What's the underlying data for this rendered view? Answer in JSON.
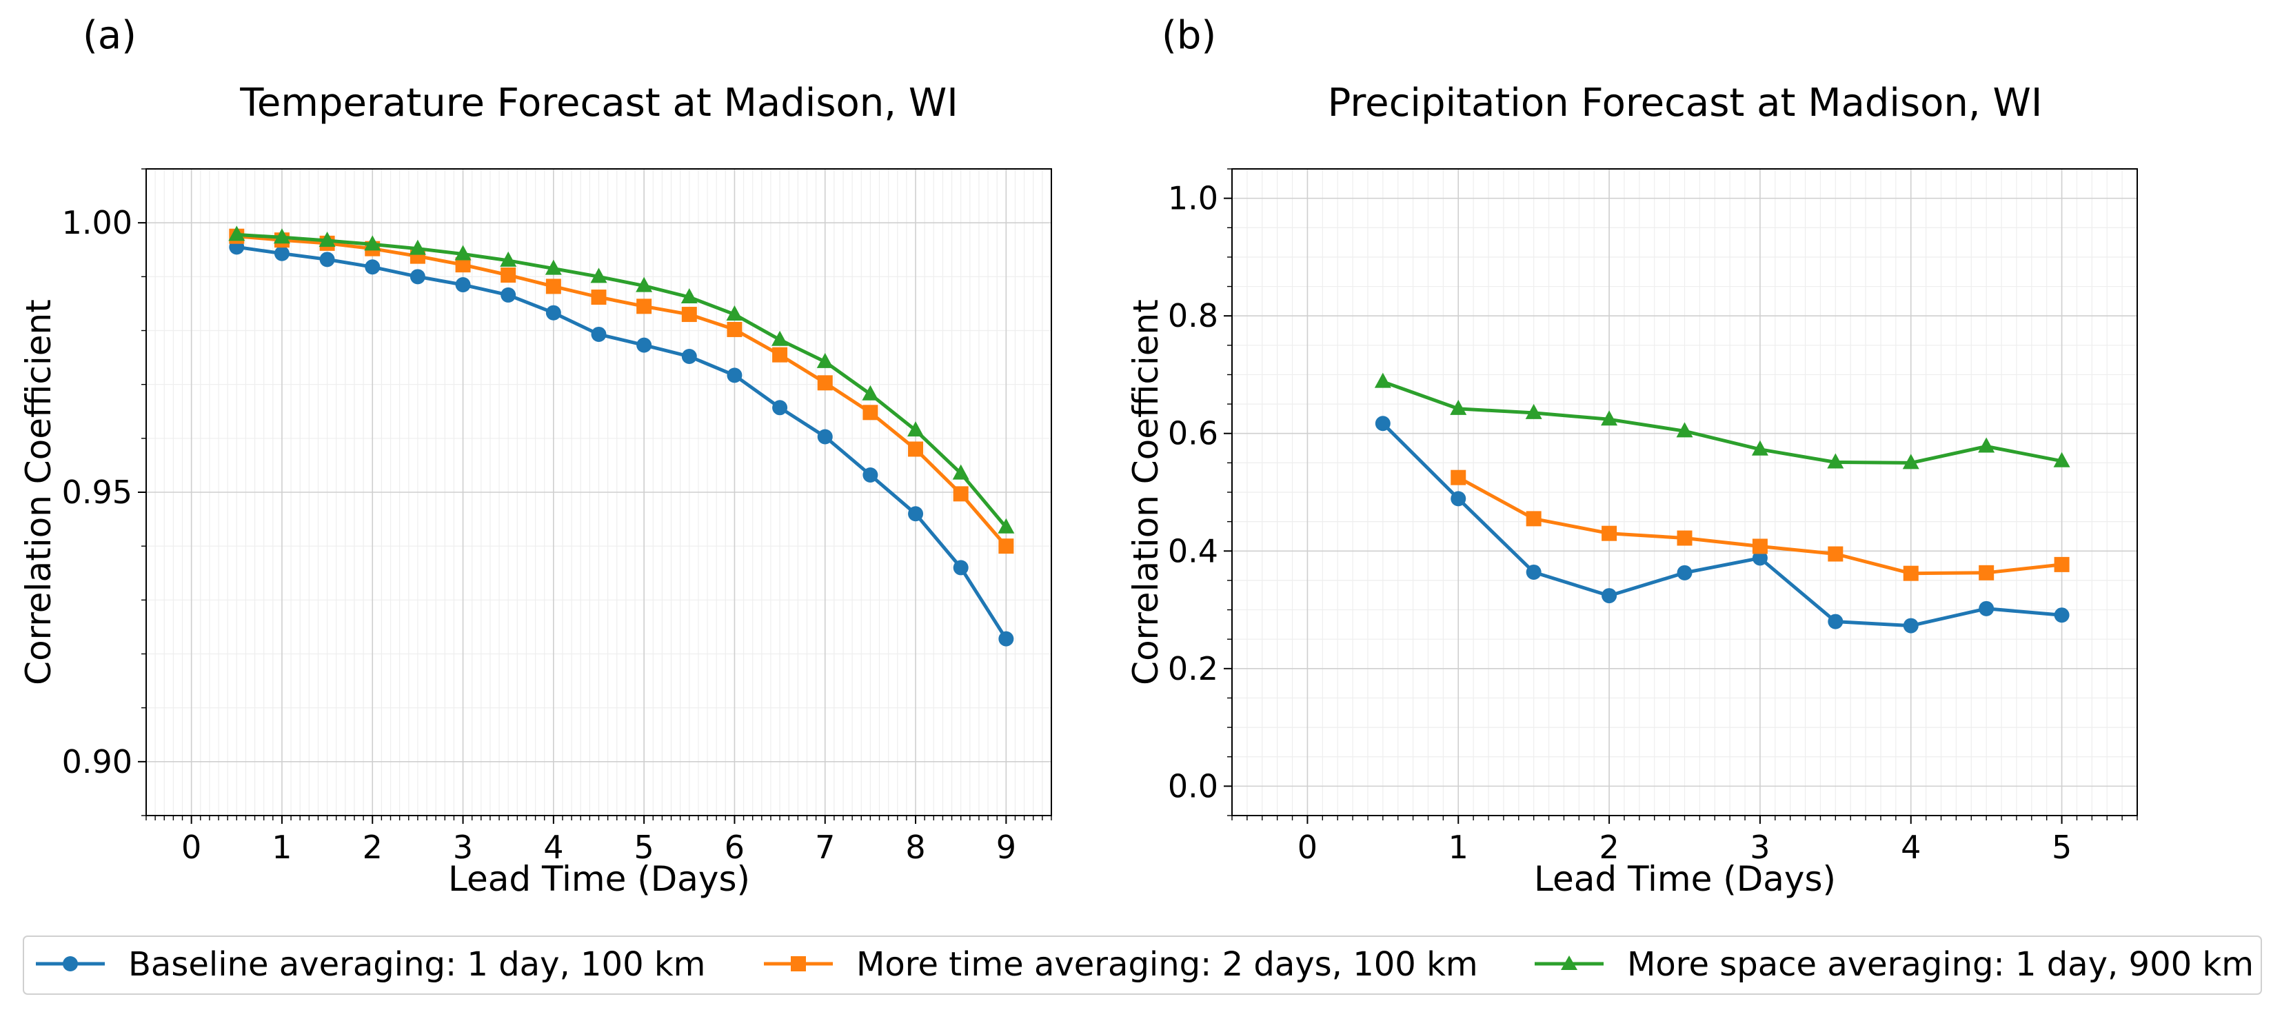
{
  "chart_data": [
    {
      "type": "line",
      "panel_label": "(a)",
      "title": "Temperature Forecast at Madison, WI",
      "xlabel": "Lead Time (Days)",
      "ylabel": "Correlation Coefficient",
      "xlim": [
        -0.5,
        9.5
      ],
      "ylim": [
        0.89,
        1.01
      ],
      "xticks": [
        0,
        1,
        2,
        3,
        4,
        5,
        6,
        7,
        8,
        9
      ],
      "xtick_labels": [
        "0",
        "1",
        "2",
        "3",
        "4",
        "5",
        "6",
        "7",
        "8",
        "9"
      ],
      "yticks": [
        0.9,
        0.95,
        1.0
      ],
      "ytick_labels": [
        "0.90",
        "0.95",
        "1.00"
      ],
      "grid": true,
      "x": [
        0.5,
        1,
        1.5,
        2,
        2.5,
        3,
        3.5,
        4,
        4.5,
        5,
        5.5,
        6,
        6.5,
        7,
        7.5,
        8,
        8.5,
        9
      ],
      "series": [
        {
          "name": "Baseline averaging: 1 day, 100 km",
          "marker": "circle",
          "color": "#1f77b4",
          "values": [
            0.9955,
            0.9943,
            0.9932,
            0.9918,
            0.99,
            0.9885,
            0.9866,
            0.9833,
            0.9793,
            0.9773,
            0.9752,
            0.9717,
            0.9657,
            0.9603,
            0.9532,
            0.946,
            0.936,
            0.9228
          ]
        },
        {
          "name": "More time averaging: 2 days, 100 km",
          "marker": "square",
          "color": "#ff7f0e",
          "values": [
            0.9975,
            0.9968,
            0.9962,
            0.9952,
            0.9938,
            0.9922,
            0.9903,
            0.9882,
            0.9862,
            0.9845,
            0.983,
            0.9802,
            0.9755,
            0.9703,
            0.9648,
            0.958,
            0.9497,
            0.94
          ]
        },
        {
          "name": "More space averaging: 1 day, 900 km",
          "marker": "triangle",
          "color": "#2ca02c",
          "values": [
            0.9978,
            0.9973,
            0.9967,
            0.996,
            0.9952,
            0.9942,
            0.993,
            0.9915,
            0.99,
            0.9883,
            0.9862,
            0.983,
            0.9783,
            0.9742,
            0.9682,
            0.9615,
            0.9535,
            0.9435
          ]
        }
      ]
    },
    {
      "type": "line",
      "panel_label": "(b)",
      "title": "Precipitation Forecast at Madison, WI",
      "xlabel": "Lead Time (Days)",
      "ylabel": "Correlation Coefficient",
      "xlim": [
        -0.5,
        5.5
      ],
      "ylim": [
        -0.05,
        1.05
      ],
      "xticks": [
        0,
        1,
        2,
        3,
        4,
        5
      ],
      "xtick_labels": [
        "0",
        "1",
        "2",
        "3",
        "4",
        "5"
      ],
      "yticks": [
        0.0,
        0.2,
        0.4,
        0.6,
        0.8,
        1.0
      ],
      "ytick_labels": [
        "0.0",
        "0.2",
        "0.4",
        "0.6",
        "0.8",
        "1.0"
      ],
      "grid": true,
      "series": [
        {
          "name": "Baseline averaging: 1 day, 100 km",
          "marker": "circle",
          "color": "#1f77b4",
          "x": [
            0.5,
            1,
            1.5,
            2,
            2.5,
            3,
            3.5,
            4,
            4.5,
            5
          ],
          "values": [
            0.617,
            0.489,
            0.364,
            0.324,
            0.363,
            0.388,
            0.28,
            0.273,
            0.302,
            0.291
          ]
        },
        {
          "name": "More time averaging: 2 days, 100 km",
          "marker": "square",
          "color": "#ff7f0e",
          "x": [
            1,
            1.5,
            2,
            2.5,
            3,
            3.5,
            4,
            4.5,
            5
          ],
          "values": [
            0.525,
            0.455,
            0.43,
            0.422,
            0.408,
            0.395,
            0.362,
            0.363,
            0.377
          ]
        },
        {
          "name": "More space averaging: 1 day, 900 km",
          "marker": "triangle",
          "color": "#2ca02c",
          "x": [
            0.5,
            1,
            1.5,
            2,
            2.5,
            3,
            3.5,
            4,
            4.5,
            5
          ],
          "values": [
            0.688,
            0.642,
            0.635,
            0.624,
            0.604,
            0.573,
            0.551,
            0.55,
            0.578,
            0.553
          ]
        }
      ]
    }
  ],
  "legend": {
    "placement": "bottom-center",
    "entries": [
      {
        "label": "Baseline averaging: 1 day, 100 km",
        "marker": "circle",
        "color": "#1f77b4"
      },
      {
        "label": "More time averaging: 2 days, 100 km",
        "marker": "square",
        "color": "#ff7f0e"
      },
      {
        "label": "More space averaging: 1 day, 900 km",
        "marker": "triangle",
        "color": "#2ca02c"
      }
    ]
  }
}
